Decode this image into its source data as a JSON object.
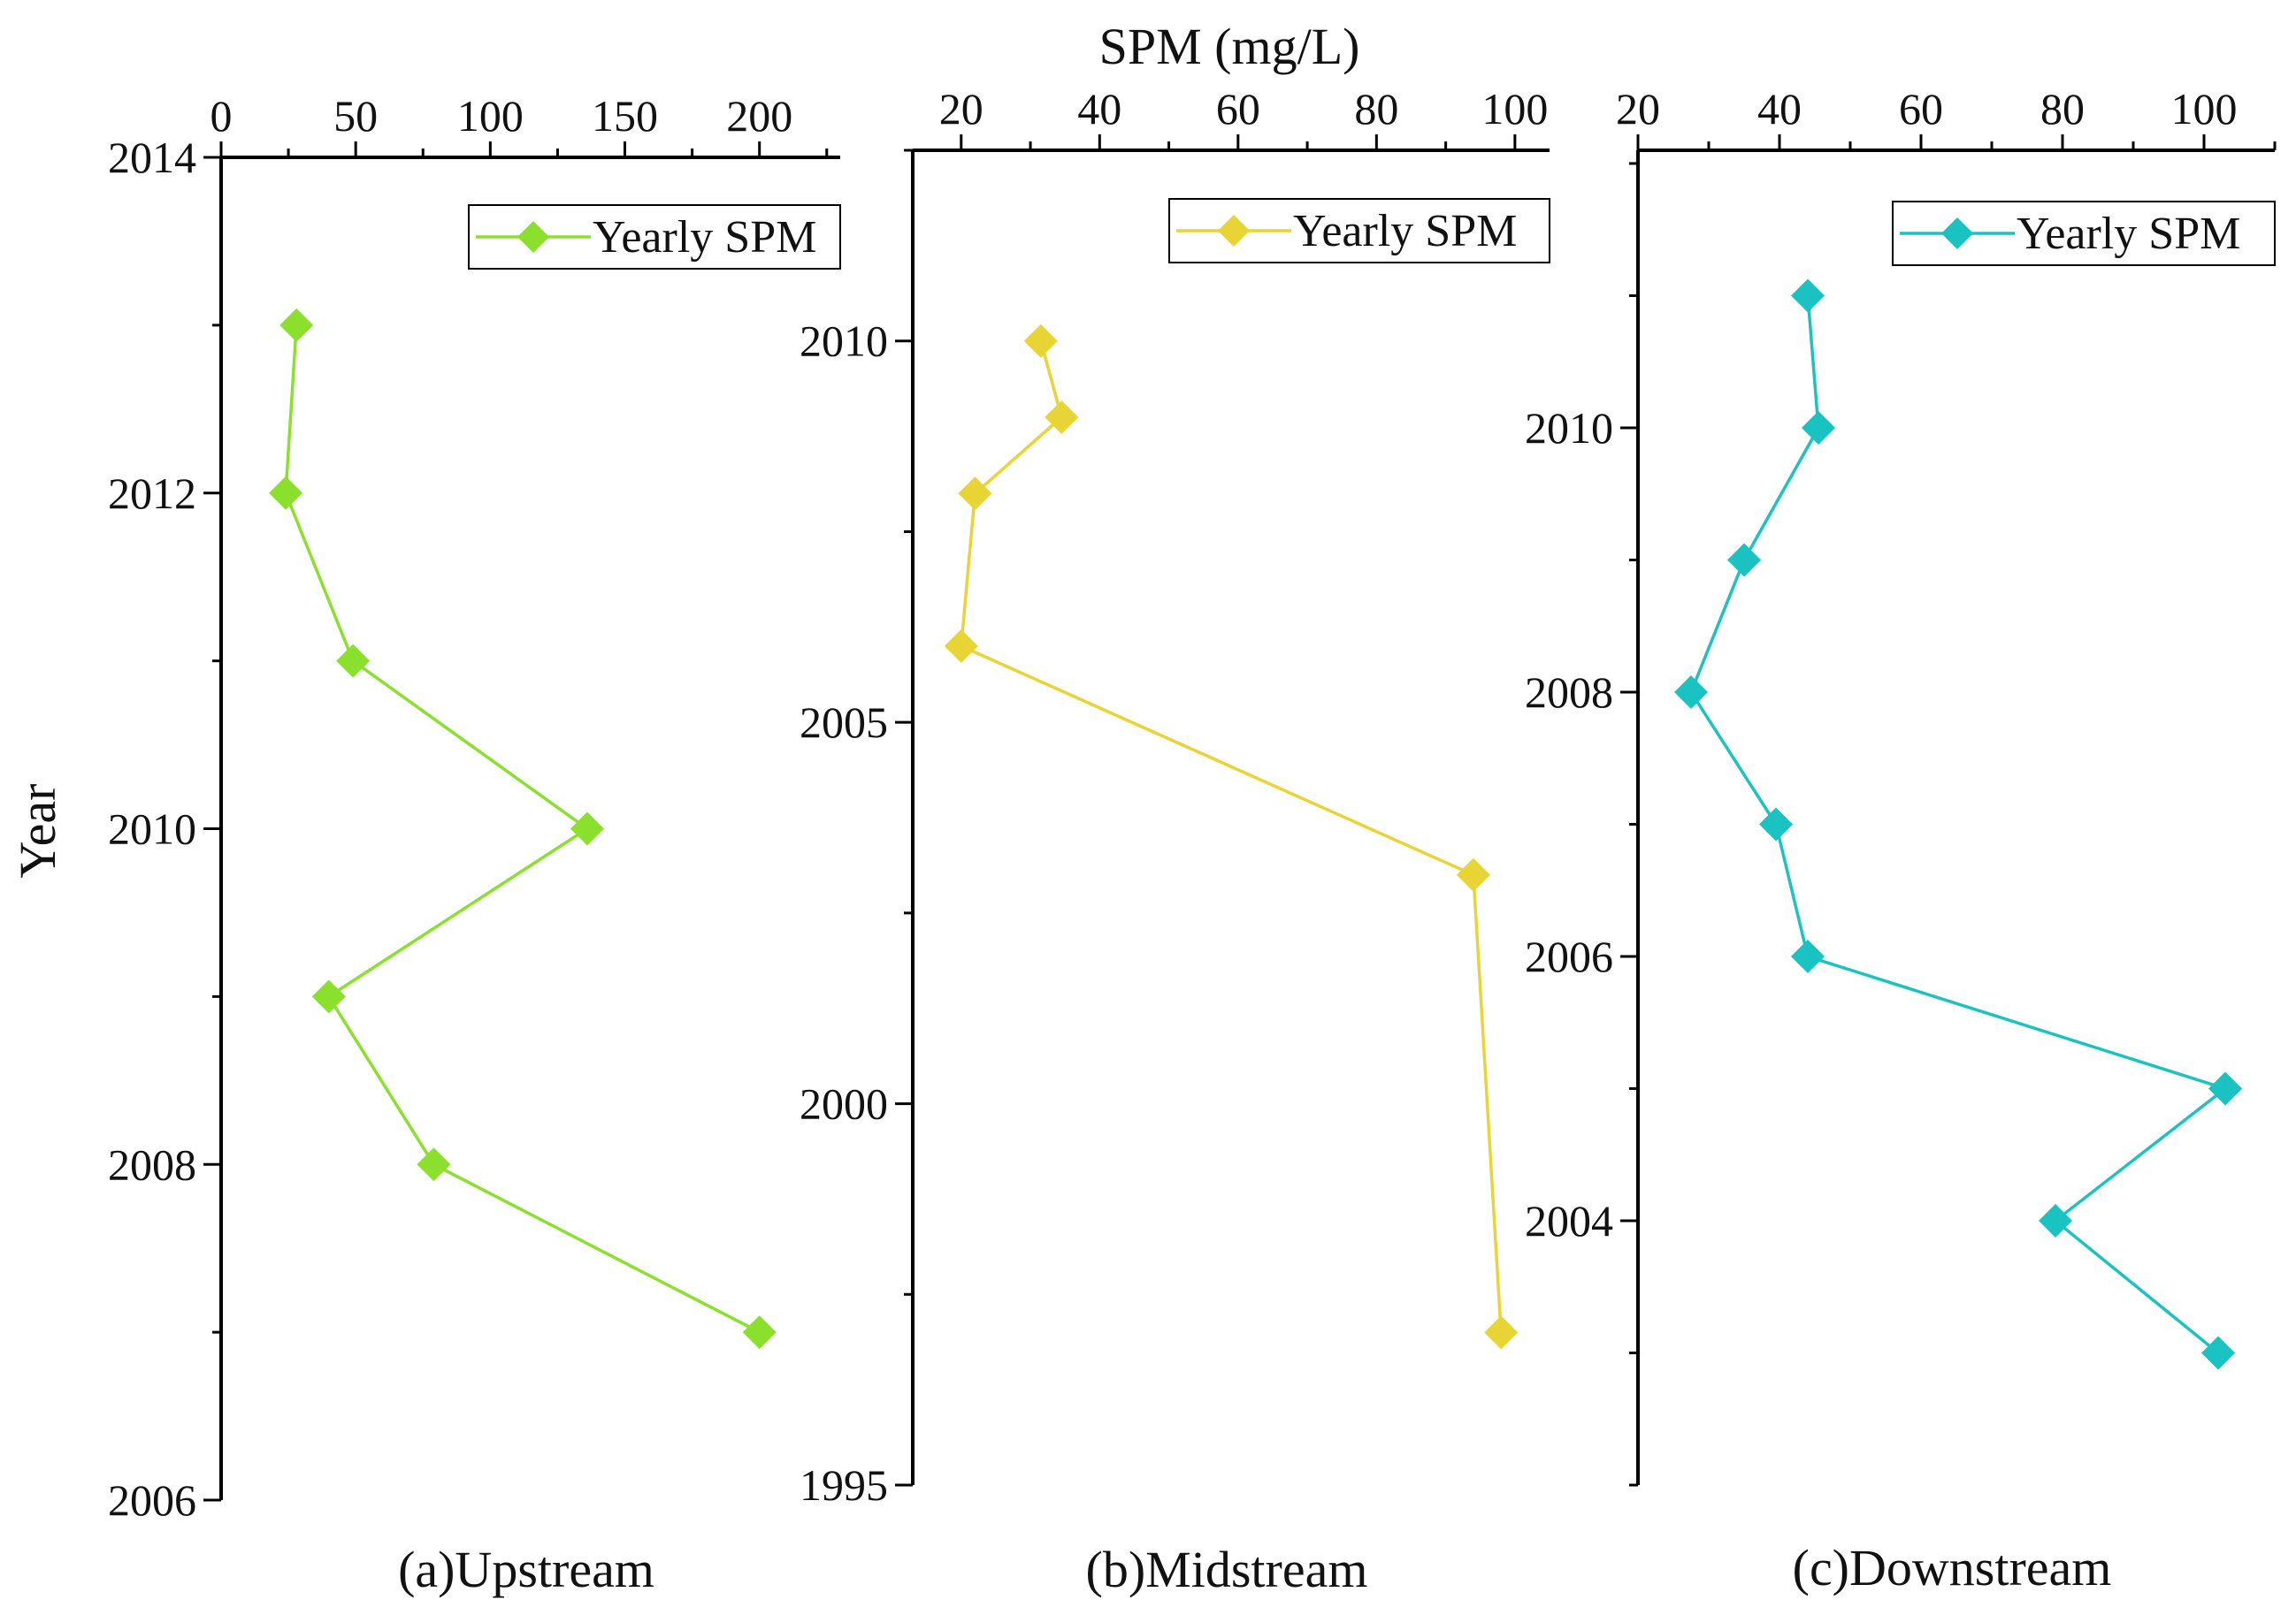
{
  "figure": {
    "x_axis_title": "SPM (mg/L)",
    "y_axis_title": "Year"
  },
  "chart_data": [
    {
      "type": "line",
      "caption": "(a)Upstream",
      "legend": "Yearly SPM",
      "legend_position": "top-right",
      "color": "#8BE02E",
      "x_axis_position": "top",
      "y_axis_inverted": false,
      "xlim": [
        0,
        230
      ],
      "xticks": [
        0,
        50,
        100,
        150,
        200
      ],
      "ylim": [
        2006,
        2014
      ],
      "yticks": [
        2006,
        2008,
        2010,
        2012,
        2014
      ],
      "grid": false,
      "points": [
        {
          "year": 2013,
          "spm": 28
        },
        {
          "year": 2012,
          "spm": 24
        },
        {
          "year": 2011,
          "spm": 49
        },
        {
          "year": 2010,
          "spm": 136
        },
        {
          "year": 2009,
          "spm": 40
        },
        {
          "year": 2008,
          "spm": 79
        },
        {
          "year": 2007,
          "spm": 200
        }
      ]
    },
    {
      "type": "line",
      "caption": "(b)Midstream",
      "legend": "Yearly SPM",
      "legend_position": "top-right",
      "color": "#E8D435",
      "x_axis_position": "top",
      "y_axis_inverted": false,
      "xlim": [
        13,
        105
      ],
      "xticks": [
        20,
        40,
        60,
        80,
        100
      ],
      "ylim": [
        1995,
        2012.5
      ],
      "yticks": [
        1995,
        2000,
        2005,
        2010
      ],
      "grid": false,
      "points": [
        {
          "year": 2010,
          "spm": 31.5
        },
        {
          "year": 2009,
          "spm": 34.5
        },
        {
          "year": 2008,
          "spm": 22
        },
        {
          "year": 2006,
          "spm": 20
        },
        {
          "year": 2003,
          "spm": 94
        },
        {
          "year": 1997,
          "spm": 98
        }
      ]
    },
    {
      "type": "line",
      "caption": "(c)Downstream",
      "legend": "Yearly SPM",
      "legend_position": "top-right",
      "color": "#1BC2C2",
      "x_axis_position": "top",
      "y_axis_inverted": false,
      "xlim": [
        20,
        110
      ],
      "xticks": [
        20,
        40,
        60,
        80,
        100
      ],
      "ylim": [
        2002,
        2012.1
      ],
      "yticks": [
        2004,
        2006,
        2008,
        2010
      ],
      "grid": false,
      "points": [
        {
          "year": 2011,
          "spm": 44
        },
        {
          "year": 2010,
          "spm": 45.5
        },
        {
          "year": 2009,
          "spm": 35
        },
        {
          "year": 2008,
          "spm": 27.5
        },
        {
          "year": 2007,
          "spm": 39.5
        },
        {
          "year": 2006,
          "spm": 44
        },
        {
          "year": 2005,
          "spm": 103
        },
        {
          "year": 2004,
          "spm": 79
        },
        {
          "year": 2003,
          "spm": 102
        }
      ]
    }
  ]
}
